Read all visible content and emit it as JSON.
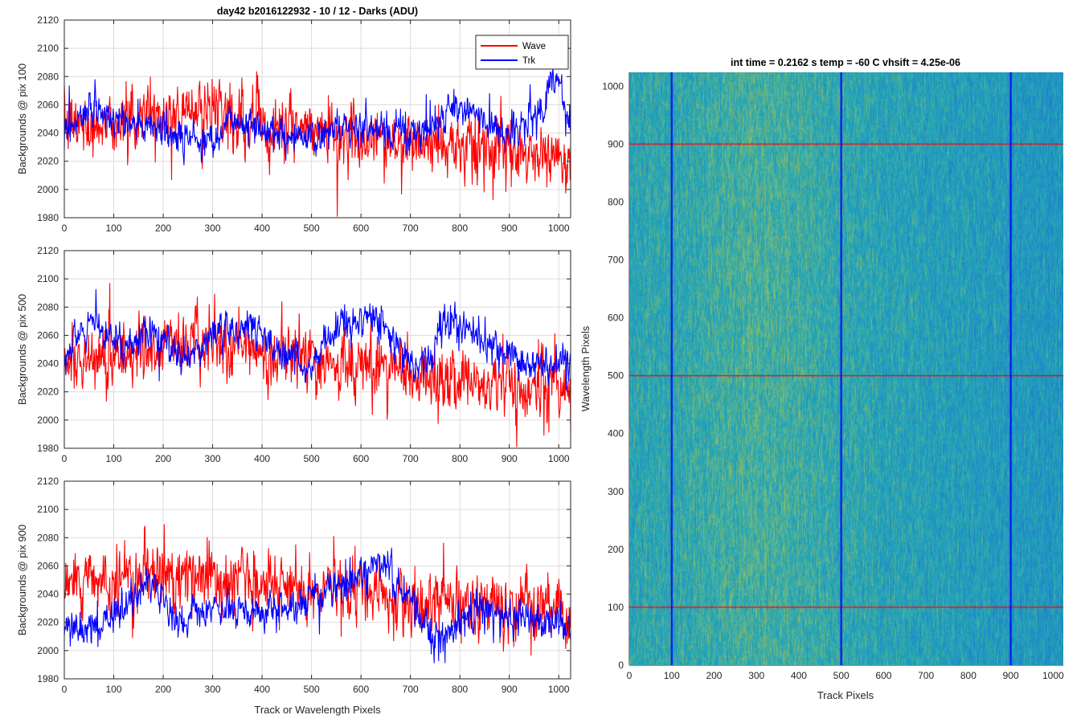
{
  "colors": {
    "wave": "#ff0000",
    "trk": "#0000ff",
    "heatmap_low": "#1f6fd1",
    "heatmap_mid": "#22a6b8",
    "heatmap_high": "#b5c64a"
  },
  "chart_data": [
    {
      "type": "line",
      "title": "day42 b2016122932 - 10 / 12 - Darks (ADU)",
      "xlabel": "",
      "ylabel": "Backgrounds @ pix 100",
      "xlim": [
        0,
        1024
      ],
      "ylim": [
        1980,
        2120
      ],
      "xticks": [
        "0",
        "100",
        "200",
        "300",
        "400",
        "500",
        "600",
        "700",
        "800",
        "900",
        "1000"
      ],
      "yticks": [
        "1980",
        "2000",
        "2020",
        "2040",
        "2060",
        "2080",
        "2100",
        "2120"
      ],
      "grid": true,
      "legend": {
        "position": "top-right",
        "entries": [
          "Wave",
          "Trk"
        ]
      },
      "series": [
        {
          "name": "Wave",
          "color": "red",
          "baseline": [
            [
              0,
              2045
            ],
            [
              150,
              2050
            ],
            [
              250,
              2056
            ],
            [
              350,
              2052
            ],
            [
              500,
              2040
            ],
            [
              600,
              2037
            ],
            [
              700,
              2032
            ],
            [
              800,
              2030
            ],
            [
              900,
              2025
            ],
            [
              1024,
              2022
            ]
          ],
          "noise": 14
        },
        {
          "name": "Trk",
          "color": "blue",
          "baseline": [
            [
              0,
              2040
            ],
            [
              60,
              2058
            ],
            [
              100,
              2050
            ],
            [
              200,
              2042
            ],
            [
              280,
              2034
            ],
            [
              350,
              2050
            ],
            [
              450,
              2038
            ],
            [
              550,
              2040
            ],
            [
              650,
              2042
            ],
            [
              740,
              2040
            ],
            [
              790,
              2062
            ],
            [
              860,
              2045
            ],
            [
              920,
              2040
            ],
            [
              960,
              2055
            ],
            [
              995,
              2085
            ],
            [
              1024,
              2042
            ]
          ],
          "noise": 8
        }
      ]
    },
    {
      "type": "line",
      "xlabel": "",
      "ylabel": "Backgrounds @ pix 500",
      "xlim": [
        0,
        1024
      ],
      "ylim": [
        1980,
        2120
      ],
      "xticks": [
        "0",
        "100",
        "200",
        "300",
        "400",
        "500",
        "600",
        "700",
        "800",
        "900",
        "1000"
      ],
      "yticks": [
        "1980",
        "2000",
        "2020",
        "2040",
        "2060",
        "2080",
        "2100",
        "2120"
      ],
      "grid": true,
      "series": [
        {
          "name": "Wave",
          "color": "red",
          "baseline": [
            [
              0,
              2042
            ],
            [
              150,
              2048
            ],
            [
              300,
              2055
            ],
            [
              400,
              2050
            ],
            [
              500,
              2040
            ],
            [
              600,
              2038
            ],
            [
              700,
              2032
            ],
            [
              800,
              2030
            ],
            [
              900,
              2025
            ],
            [
              1024,
              2020
            ]
          ],
          "noise": 14
        },
        {
          "name": "Trk",
          "color": "blue",
          "baseline": [
            [
              0,
              2045
            ],
            [
              60,
              2068
            ],
            [
              120,
              2050
            ],
            [
              180,
              2062
            ],
            [
              240,
              2042
            ],
            [
              300,
              2060
            ],
            [
              380,
              2068
            ],
            [
              440,
              2045
            ],
            [
              500,
              2040
            ],
            [
              560,
              2068
            ],
            [
              640,
              2070
            ],
            [
              700,
              2040
            ],
            [
              740,
              2040
            ],
            [
              760,
              2072
            ],
            [
              820,
              2065
            ],
            [
              880,
              2045
            ],
            [
              960,
              2038
            ],
            [
              1024,
              2040
            ]
          ],
          "noise": 8
        }
      ]
    },
    {
      "type": "line",
      "xlabel": "Track or Wavelength Pixels",
      "ylabel": "Backgrounds @ pix 900",
      "xlim": [
        0,
        1024
      ],
      "ylim": [
        1980,
        2120
      ],
      "xticks": [
        "0",
        "100",
        "200",
        "300",
        "400",
        "500",
        "600",
        "700",
        "800",
        "900",
        "1000"
      ],
      "yticks": [
        "1980",
        "2000",
        "2020",
        "2040",
        "2060",
        "2080",
        "2100",
        "2120"
      ],
      "grid": true,
      "series": [
        {
          "name": "Wave",
          "color": "red",
          "baseline": [
            [
              0,
              2045
            ],
            [
              100,
              2048
            ],
            [
              200,
              2055
            ],
            [
              300,
              2052
            ],
            [
              400,
              2050
            ],
            [
              500,
              2045
            ],
            [
              600,
              2045
            ],
            [
              700,
              2035
            ],
            [
              800,
              2030
            ],
            [
              900,
              2030
            ],
            [
              1024,
              2028
            ]
          ],
          "noise": 14
        },
        {
          "name": "Trk",
          "color": "blue",
          "baseline": [
            [
              0,
              2020
            ],
            [
              50,
              2012
            ],
            [
              100,
              2025
            ],
            [
              180,
              2048
            ],
            [
              230,
              2020
            ],
            [
              300,
              2030
            ],
            [
              400,
              2028
            ],
            [
              460,
              2030
            ],
            [
              500,
              2040
            ],
            [
              560,
              2045
            ],
            [
              640,
              2065
            ],
            [
              700,
              2035
            ],
            [
              760,
              2005
            ],
            [
              820,
              2028
            ],
            [
              900,
              2025
            ],
            [
              1000,
              2020
            ],
            [
              1024,
              2015
            ]
          ],
          "noise": 8
        }
      ]
    },
    {
      "type": "heatmap",
      "title": "int time = 0.2162 s    temp = -60 C    vhsift = 4.25e-06",
      "xlabel": "Track Pixels",
      "ylabel": "Wavelength Pixels",
      "xlim": [
        0,
        1024
      ],
      "ylim": [
        0,
        1024
      ],
      "xticks": [
        "0",
        "100",
        "200",
        "300",
        "400",
        "500",
        "600",
        "700",
        "800",
        "900",
        "1000"
      ],
      "yticks": [
        "0",
        "100",
        "200",
        "300",
        "400",
        "500",
        "600",
        "700",
        "800",
        "900",
        "1000"
      ],
      "vertical_lines": {
        "color": "blue",
        "x": [
          100,
          500,
          900
        ]
      },
      "horizontal_lines": {
        "color": "red",
        "y": [
          100,
          500,
          900
        ]
      }
    }
  ]
}
